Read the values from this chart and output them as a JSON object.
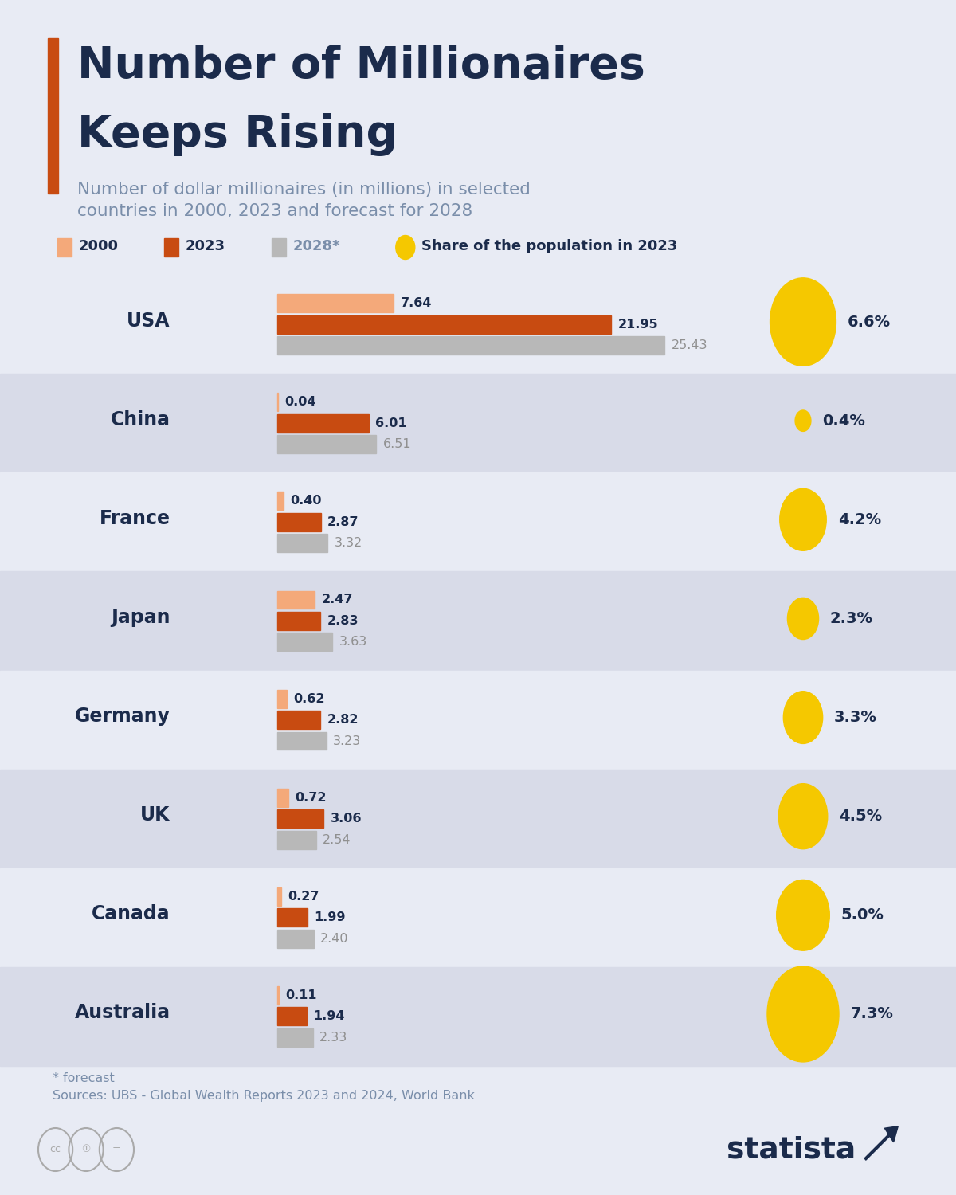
{
  "title_line1": "Number of Millionaires",
  "title_line2": "Keeps Rising",
  "subtitle": "Number of dollar millionaires (in millions) in selected\ncountries in 2000, 2023 and forecast for 2028",
  "accent_color": "#C84B11",
  "background_color": "#E8EBF4",
  "row_even_color": "#E8EBF4",
  "row_odd_color": "#D8DBE8",
  "title_color": "#1B2B4B",
  "subtitle_color": "#7A8EAA",
  "label_dark_color": "#1B2B4B",
  "label_gray_color": "#909090",
  "source_text": "* forecast\nSources: UBS - Global Wealth Reports 2023 and 2024, World Bank",
  "color_2000": "#F4A97A",
  "color_2023": "#C84B11",
  "color_2028": "#B8B8B8",
  "color_share": "#F5C800",
  "countries": [
    "USA",
    "China",
    "France",
    "Japan",
    "Germany",
    "UK",
    "Canada",
    "Australia"
  ],
  "values_2000": [
    7.64,
    0.04,
    0.4,
    2.47,
    0.62,
    0.72,
    0.27,
    0.11
  ],
  "values_2023": [
    21.95,
    6.01,
    2.87,
    2.83,
    2.82,
    3.06,
    1.99,
    1.94
  ],
  "values_2028": [
    25.43,
    6.51,
    3.32,
    3.63,
    3.23,
    2.54,
    2.4,
    2.33
  ],
  "share_2023": [
    6.6,
    0.4,
    4.2,
    2.3,
    3.3,
    4.5,
    5.0,
    7.3
  ],
  "share_labels": [
    "6.6%",
    "0.4%",
    "4.2%",
    "2.3%",
    "3.3%",
    "4.5%",
    "5.0%",
    "7.3%"
  ],
  "max_bar_value": 27.0,
  "fig_width": 12.0,
  "fig_height": 15.0,
  "dpi": 100
}
